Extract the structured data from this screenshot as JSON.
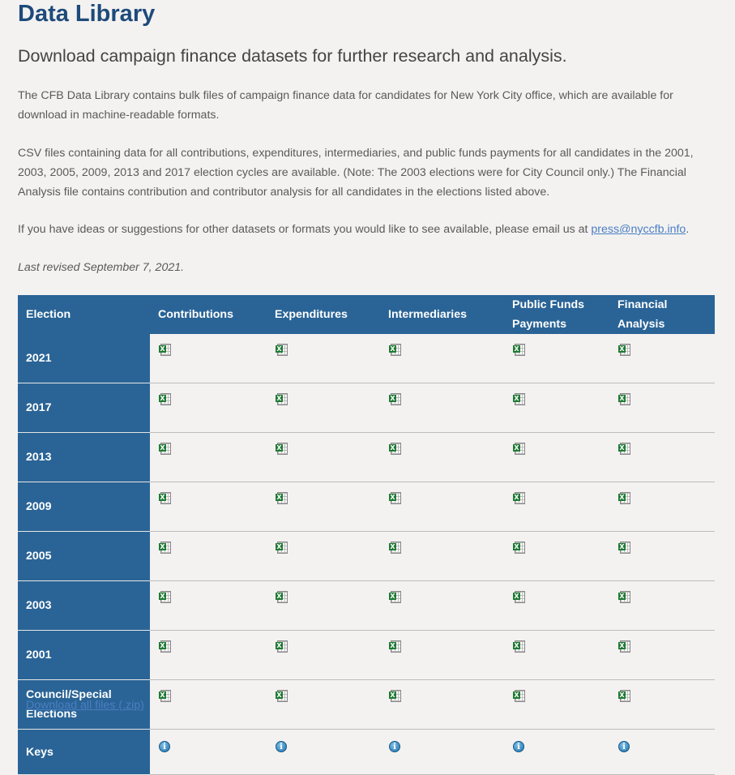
{
  "page": {
    "title": "Data Library",
    "subtitle": "Download campaign finance datasets for further research and analysis.",
    "paragraph1": "The CFB Data Library contains bulk files of campaign finance data for candidates for New York City office, which are available for download in machine-readable formats.",
    "paragraph2": "CSV files containing data for all contributions, expenditures, intermediaries, and public funds payments for all candidates in the 2001, 2003, 2005, 2009, 2013 and 2017 election cycles are available. (Note: The 2003 elections were for City Council only.) The Financial Analysis file contains contribution and contributor analysis for all candidates in the elections listed above.",
    "paragraph3_before": "If you have ideas or suggestions for other datasets or formats you would like to see available, please email us at ",
    "email": "press@nyccfb.info",
    "paragraph3_after": ".",
    "revised": "Last revised September 7, 2021."
  },
  "table": {
    "headers": [
      "Election",
      "Contributions",
      "Expenditures",
      "Intermediaries",
      "Public Funds Payments",
      "Financial Analysis"
    ],
    "rows": [
      "2021",
      "2017",
      "2013",
      "2009",
      "2005",
      "2003",
      "2001",
      "Council/Special Elections"
    ],
    "keys_label": "Keys",
    "file_icon": "excel-file-icon",
    "key_icon": "info-icon"
  },
  "download_all": "Download all files (.zip)"
}
